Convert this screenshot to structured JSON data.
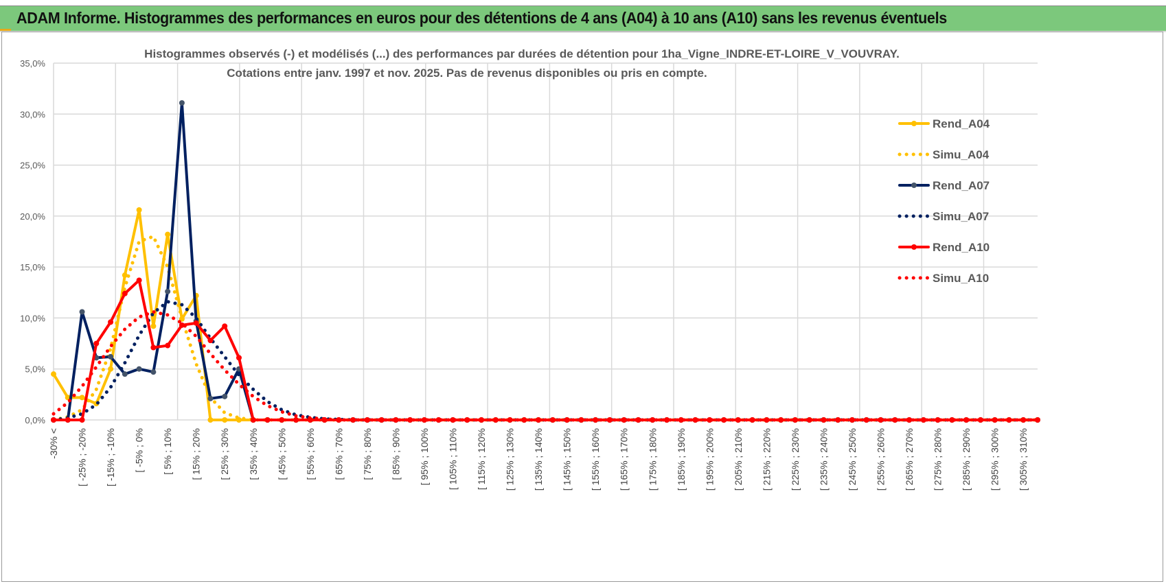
{
  "header": {
    "title": "ADAM Informe. Histogrammes des performances en euros pour des détentions de 4 ans (A04) à 10 ans (A10) sans les revenus éventuels"
  },
  "chart_data": {
    "type": "line",
    "title": [
      "Histogrammes observés (-) et modélisés (...) des performances par durées de détention pour 1ha_Vigne_INDRE-ET-LOIRE_V_VOUVRAY.",
      "Cotations entre janv. 1997 et nov. 2025. Pas de revenus disponibles ou pris en compte."
    ],
    "xlabel": "",
    "ylabel": "",
    "ylim": [
      0,
      35
    ],
    "yticks": [
      "0,0%",
      "5,0%",
      "10,0%",
      "15,0%",
      "20,0%",
      "25,0%",
      "30,0%",
      "35,0%"
    ],
    "n_points": 70,
    "x_labels": [
      "-30% <",
      "[ -25% ; -20%",
      "[ -15% ; -10%",
      "[ -5% ; 0%",
      "[ 5% ; 10%",
      "[ 15% ; 20%",
      "[ 25% ; 30%",
      "[ 35% ; 40%",
      "[ 45% ; 50%",
      "[ 55% ; 60%",
      "[ 65% ; 70%",
      "[ 75% ; 80%",
      "[ 85% ; 90%",
      "[ 95% ; 100%",
      "[ 105% ; 110%",
      "[ 115% ; 120%",
      "[ 125% ; 130%",
      "[ 135% ; 140%",
      "[ 145% ; 150%",
      "[ 155% ; 160%",
      "[ 165% ; 170%",
      "[ 175% ; 180%",
      "[ 185% ; 190%",
      "[ 195% ; 200%",
      "[ 205% ; 210%",
      "[ 215% ; 220%",
      "[ 225% ; 230%",
      "[ 235% ; 240%",
      "[ 245% ; 250%",
      "[ 255% ; 260%",
      "[ 265% ; 270%",
      "[ 275% ; 280%",
      "[ 285% ; 290%",
      "[ 295% ; 300%",
      "[ 305% ; 310%"
    ],
    "legend_position": "right",
    "series": [
      {
        "name": "Rend_A04",
        "color": "#ffc000",
        "style": "solid",
        "values": [
          4.5,
          2.2,
          2.2,
          1.6,
          5.0,
          14.2,
          20.6,
          9.2,
          18.2,
          9.9,
          12.2,
          0,
          0,
          0,
          0
        ]
      },
      {
        "name": "Simu_A04",
        "color": "#ffc000",
        "style": "dotted",
        "values": [
          0,
          0.3,
          1.0,
          3.0,
          7.0,
          13.0,
          17.5,
          18.0,
          15.0,
          10.0,
          5.5,
          2.2,
          0.7,
          0.2,
          0
        ]
      },
      {
        "name": "Rend_A07",
        "color": "#002060",
        "style": "solid",
        "values": [
          0,
          0,
          10.6,
          6.1,
          6.2,
          4.5,
          5.0,
          4.7,
          12.6,
          31.1,
          9.7,
          2.1,
          2.3,
          5.0,
          0
        ]
      },
      {
        "name": "Simu_A07",
        "color": "#002060",
        "style": "dotted",
        "values": [
          0,
          0.2,
          0.6,
          1.5,
          3.2,
          5.6,
          8.3,
          10.5,
          11.6,
          11.3,
          10.0,
          8.0,
          6.2,
          4.4,
          3.0,
          1.8,
          1.0,
          0.5,
          0.25,
          0.1,
          0.05,
          0
        ]
      },
      {
        "name": "Rend_A10",
        "color": "#ff0000",
        "style": "solid",
        "values": [
          0,
          0,
          0,
          7.5,
          9.6,
          12.4,
          13.7,
          7.1,
          7.3,
          9.3,
          9.5,
          7.8,
          9.2,
          6.1,
          0
        ]
      },
      {
        "name": "Simu_A10",
        "color": "#ff0000",
        "style": "dotted",
        "values": [
          0.6,
          1.7,
          3.3,
          5.2,
          7.2,
          8.9,
          10.1,
          10.6,
          10.3,
          9.5,
          8.2,
          6.5,
          4.9,
          3.5,
          2.3,
          1.4,
          0.8,
          0.4,
          0.2,
          0.1,
          0
        ]
      }
    ]
  }
}
